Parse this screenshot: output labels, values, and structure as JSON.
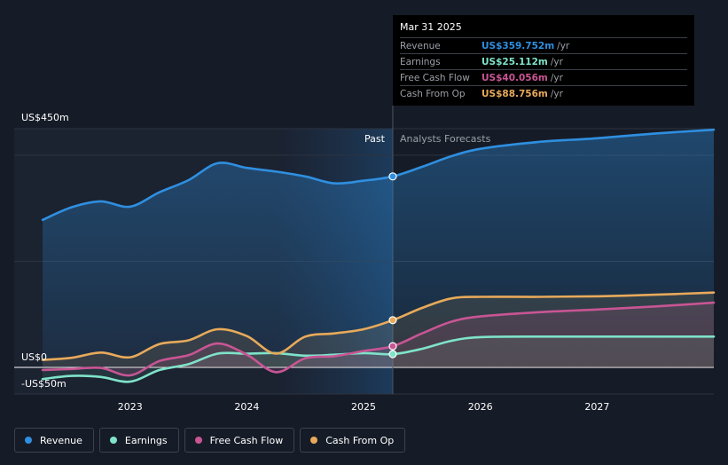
{
  "chart_data": {
    "type": "line",
    "title": "",
    "xlabel": "",
    "ylabel": "",
    "ylim": [
      -50,
      450
    ],
    "y_tick_labels": [
      "US$450m",
      "US$0",
      "-US$50m"
    ],
    "x_tick_labels": [
      "2023",
      "2024",
      "2025",
      "2026",
      "2027"
    ],
    "x_ticks": [
      2023.0,
      2024.0,
      2025.0,
      2026.0,
      2027.0
    ],
    "xlim": [
      2022.25,
      2028.0
    ],
    "past_label": "Past",
    "forecast_label": "Analysts Forecasts",
    "divider_x": 2025.25,
    "highlight_start_x": 2024.25,
    "series": [
      {
        "name": "Revenue",
        "color": "#2f8fe0",
        "x": [
          2022.25,
          2022.5,
          2022.75,
          2023.0,
          2023.25,
          2023.5,
          2023.75,
          2024.0,
          2024.25,
          2024.5,
          2024.75,
          2025.0,
          2025.25,
          2025.5,
          2025.75,
          2026.0,
          2026.5,
          2027.0,
          2027.5,
          2028.0
        ],
        "values": [
          278,
          302,
          313,
          303,
          330,
          353,
          385,
          376,
          369,
          360,
          347,
          352,
          360,
          378,
          398,
          412,
          425,
          432,
          441,
          448
        ]
      },
      {
        "name": "Earnings",
        "color": "#7fe3c9",
        "x": [
          2022.25,
          2022.5,
          2022.75,
          2023.0,
          2023.25,
          2023.5,
          2023.75,
          2024.0,
          2024.25,
          2024.5,
          2024.75,
          2025.0,
          2025.25,
          2025.5,
          2025.75,
          2026.0,
          2026.5,
          2027.0,
          2027.5,
          2028.0
        ],
        "values": [
          -22,
          -16,
          -18,
          -27,
          -5,
          6,
          26,
          26,
          27,
          22,
          24,
          27,
          25,
          35,
          50,
          57,
          58,
          58,
          58,
          58
        ]
      },
      {
        "name": "Free Cash Flow",
        "color": "#c85594",
        "x": [
          2022.25,
          2022.5,
          2022.75,
          2023.0,
          2023.25,
          2023.5,
          2023.75,
          2024.0,
          2024.25,
          2024.5,
          2024.75,
          2025.0,
          2025.25,
          2025.5,
          2025.75,
          2026.0,
          2026.5,
          2027.0,
          2027.5,
          2028.0
        ],
        "values": [
          -5,
          -3,
          -1,
          -15,
          12,
          23,
          45,
          24,
          -9,
          17,
          21,
          31,
          40,
          64,
          86,
          96,
          104,
          109,
          115,
          122
        ]
      },
      {
        "name": "Cash From Op",
        "color": "#e8aa5a",
        "x": [
          2022.25,
          2022.5,
          2022.75,
          2023.0,
          2023.25,
          2023.5,
          2023.75,
          2024.0,
          2024.25,
          2024.5,
          2024.75,
          2025.0,
          2025.25,
          2025.5,
          2025.75,
          2026.0,
          2026.5,
          2027.0,
          2027.5,
          2028.0
        ],
        "values": [
          14,
          18,
          28,
          19,
          44,
          51,
          72,
          59,
          26,
          58,
          64,
          72,
          89,
          112,
          130,
          133,
          133,
          134,
          137,
          141
        ]
      }
    ]
  },
  "tooltip": {
    "date": "Mar 31 2025",
    "rows": [
      {
        "name": "Revenue",
        "value": "US$359.752m",
        "unit": "/yr",
        "color": "#2f8fe0"
      },
      {
        "name": "Earnings",
        "value": "US$25.112m",
        "unit": "/yr",
        "color": "#7fe3c9"
      },
      {
        "name": "Free Cash Flow",
        "value": "US$40.056m",
        "unit": "/yr",
        "color": "#c85594"
      },
      {
        "name": "Cash From Op",
        "value": "US$88.756m",
        "unit": "/yr",
        "color": "#e8aa5a"
      }
    ]
  },
  "legend": [
    {
      "label": "Revenue",
      "color": "#2f8fe0"
    },
    {
      "label": "Earnings",
      "color": "#7fe3c9"
    },
    {
      "label": "Free Cash Flow",
      "color": "#c85594"
    },
    {
      "label": "Cash From Op",
      "color": "#e8aa5a"
    }
  ]
}
